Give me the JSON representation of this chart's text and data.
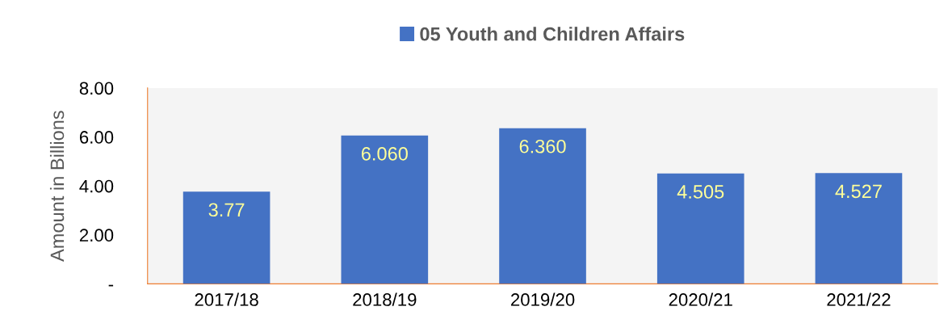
{
  "chart_data": {
    "type": "bar",
    "ylabel": "Amount in Billions",
    "categories": [
      "2017/18",
      "2018/19",
      "2019/20",
      "2020/21",
      "2021/22"
    ],
    "series": [
      {
        "name": "05 Youth and Children Affairs",
        "color": "#4472c4",
        "values": [
          3.77,
          6.06,
          6.36,
          4.505,
          4.527
        ],
        "value_labels": [
          "3.77",
          "6.060",
          "6.360",
          "4.505",
          "4.527"
        ]
      }
    ],
    "ylim": [
      0,
      8
    ],
    "yticks": [
      {
        "value": 0,
        "label": "-"
      },
      {
        "value": 2,
        "label": "2.00"
      },
      {
        "value": 4,
        "label": "4.00"
      },
      {
        "value": 6,
        "label": "6.00"
      },
      {
        "value": 8,
        "label": "8.00"
      }
    ],
    "grid": false,
    "legend": "top"
  }
}
